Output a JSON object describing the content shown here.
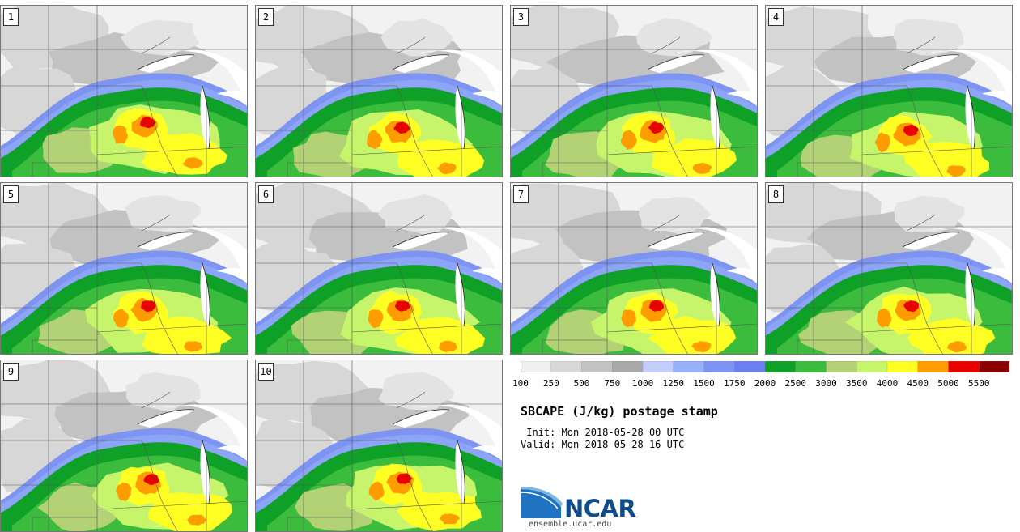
{
  "panels": [
    {
      "label": "1"
    },
    {
      "label": "2"
    },
    {
      "label": "3"
    },
    {
      "label": "4"
    },
    {
      "label": "5"
    },
    {
      "label": "6"
    },
    {
      "label": "7"
    },
    {
      "label": "8"
    },
    {
      "label": "9"
    },
    {
      "label": "10"
    }
  ],
  "colorbar": {
    "ticks": [
      "100",
      "250",
      "500",
      "750",
      "1000",
      "1250",
      "1500",
      "1750",
      "2000",
      "2500",
      "3000",
      "3500",
      "4000",
      "4500",
      "5000",
      "5500"
    ],
    "colors": [
      "#f0f0f0",
      "#d7d7d7",
      "#c2c2c2",
      "#a9a9a9",
      "#c2cdfc",
      "#98b0f8",
      "#7d94f2",
      "#6a7ff0",
      "#0fa028",
      "#3cbc3c",
      "#b3d275",
      "#c6f56b",
      "#ffff24",
      "#ff9d00",
      "#e80000",
      "#8b0000"
    ]
  },
  "title": "SBCAPE (J/kg) postage stamp",
  "init": " Init: Mon 2018-05-28 00 UTC",
  "valid": "Valid: Mon 2018-05-28 16 UTC",
  "logo": {
    "text": "NCAR",
    "site": "ensemble.ucar.edu",
    "colors": {
      "dark": "#0e4c8a",
      "mid": "#1f73c0",
      "light": "#7fb6e6"
    }
  }
}
